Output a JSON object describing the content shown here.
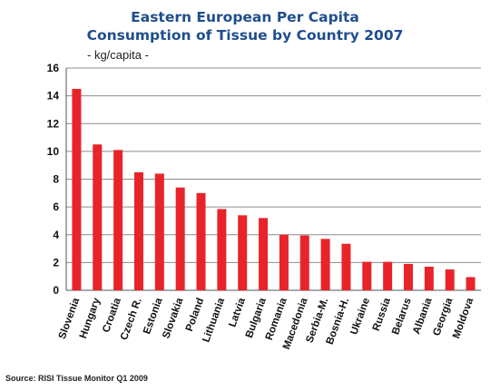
{
  "chart_data": {
    "type": "bar",
    "title": "Eastern European Per Capita",
    "subtitle": "Consumption of Tissue by Country 2007",
    "ylabel": "- kg/capita -",
    "xlabel": "",
    "ylim": [
      0,
      16
    ],
    "yticks": [
      0,
      2,
      4,
      6,
      8,
      10,
      12,
      14,
      16
    ],
    "grid": true,
    "bar_color": "#e8242a",
    "categories": [
      "Slovenia",
      "Hungary",
      "Croatia",
      "Czech R.",
      "Estonia",
      "Slovakia",
      "Poland",
      "Lithuania",
      "Latvia",
      "Bulgaria",
      "Romania",
      "Macedonia",
      "Serbia-M.",
      "Bosnia-H.",
      "Ukraine",
      "Russia",
      "Belarus",
      "Albania",
      "Georgia",
      "Moldova"
    ],
    "values": [
      14.5,
      10.5,
      10.1,
      8.5,
      8.4,
      7.4,
      7.0,
      5.85,
      5.4,
      5.2,
      4.0,
      3.95,
      3.7,
      3.35,
      2.05,
      2.05,
      1.9,
      1.7,
      1.5,
      0.95
    ]
  },
  "source": "Source: RISI Tissue Monitor Q1 2009"
}
